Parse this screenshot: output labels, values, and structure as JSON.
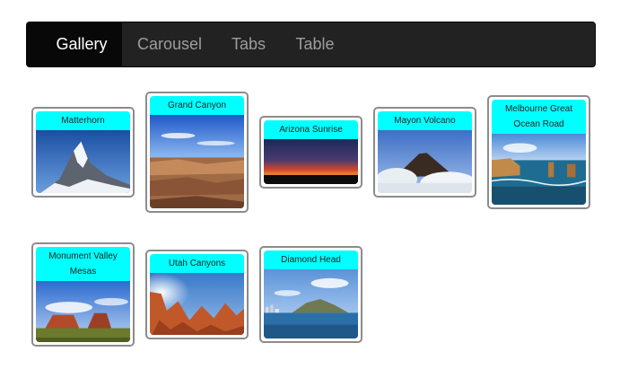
{
  "nav": {
    "items": [
      {
        "label": "Gallery",
        "active": true
      },
      {
        "label": "Carousel",
        "active": false
      },
      {
        "label": "Tabs",
        "active": false
      },
      {
        "label": "Table",
        "active": false
      }
    ]
  },
  "gallery": {
    "items": [
      {
        "title": "Matterhorn",
        "photo": "mountain-snow"
      },
      {
        "title": "Grand Canyon",
        "photo": "canyon"
      },
      {
        "title": "Arizona Sunrise",
        "photo": "sunrise"
      },
      {
        "title": "Mayon Volcano",
        "photo": "volcano"
      },
      {
        "title": "Melbourne Great Ocean Road",
        "photo": "coast-rocks"
      },
      {
        "title": "Monument Valley Mesas",
        "photo": "mesas"
      },
      {
        "title": "Utah Canyons",
        "photo": "hoodoos"
      },
      {
        "title": "Diamond Head",
        "photo": "crater-shore"
      }
    ]
  },
  "colors": {
    "navbar_bg": "#222222",
    "nav_active_bg": "#080808",
    "card_title_bg": "#00ffff",
    "card_border": "#8c8c8c"
  }
}
